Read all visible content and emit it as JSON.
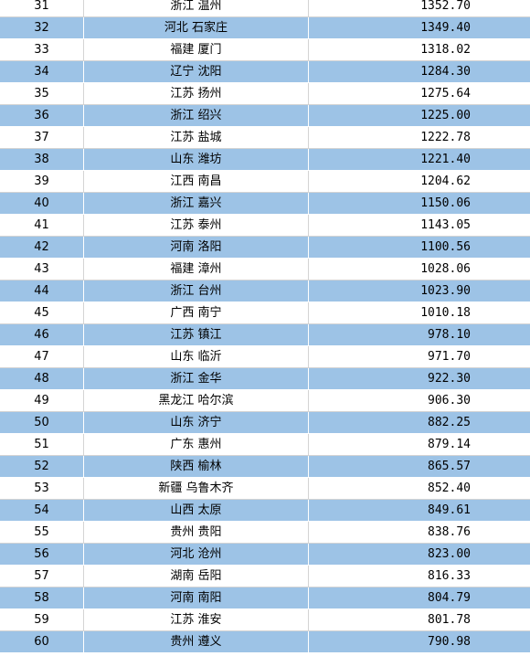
{
  "colors": {
    "stripe": "#9dc3e6",
    "plain": "#ffffff",
    "gridline": "#d4d4d4"
  },
  "rows": [
    {
      "rank": "31",
      "city": "浙江 温州",
      "value": "1352.70"
    },
    {
      "rank": "32",
      "city": "河北 石家庄",
      "value": "1349.40"
    },
    {
      "rank": "33",
      "city": "福建 厦门",
      "value": "1318.02"
    },
    {
      "rank": "34",
      "city": "辽宁 沈阳",
      "value": "1284.30"
    },
    {
      "rank": "35",
      "city": "江苏 扬州",
      "value": "1275.64"
    },
    {
      "rank": "36",
      "city": "浙江 绍兴",
      "value": "1225.00"
    },
    {
      "rank": "37",
      "city": "江苏 盐城",
      "value": "1222.78"
    },
    {
      "rank": "38",
      "city": "山东 潍坊",
      "value": "1221.40"
    },
    {
      "rank": "39",
      "city": "江西 南昌",
      "value": "1204.62"
    },
    {
      "rank": "40",
      "city": "浙江 嘉兴",
      "value": "1150.06"
    },
    {
      "rank": "41",
      "city": "江苏 泰州",
      "value": "1143.05"
    },
    {
      "rank": "42",
      "city": "河南 洛阳",
      "value": "1100.56"
    },
    {
      "rank": "43",
      "city": "福建 漳州",
      "value": "1028.06"
    },
    {
      "rank": "44",
      "city": "浙江 台州",
      "value": "1023.90"
    },
    {
      "rank": "45",
      "city": "广西 南宁",
      "value": "1010.18"
    },
    {
      "rank": "46",
      "city": "江苏 镇江",
      "value": "978.10"
    },
    {
      "rank": "47",
      "city": "山东 临沂",
      "value": "971.70"
    },
    {
      "rank": "48",
      "city": "浙江 金华",
      "value": "922.30"
    },
    {
      "rank": "49",
      "city": "黑龙江 哈尔滨",
      "value": "906.30"
    },
    {
      "rank": "50",
      "city": "山东 济宁",
      "value": "882.25"
    },
    {
      "rank": "51",
      "city": "广东 惠州",
      "value": "879.14"
    },
    {
      "rank": "52",
      "city": "陕西 榆林",
      "value": "865.57"
    },
    {
      "rank": "53",
      "city": "新疆 乌鲁木齐",
      "value": "852.40"
    },
    {
      "rank": "54",
      "city": "山西 太原",
      "value": "849.61"
    },
    {
      "rank": "55",
      "city": "贵州 贵阳",
      "value": "838.76"
    },
    {
      "rank": "56",
      "city": "河北 沧州",
      "value": "823.00"
    },
    {
      "rank": "57",
      "city": "湖南 岳阳",
      "value": "816.33"
    },
    {
      "rank": "58",
      "city": "河南 南阳",
      "value": "804.79"
    },
    {
      "rank": "59",
      "city": "江苏 淮安",
      "value": "801.78"
    },
    {
      "rank": "60",
      "city": "贵州 遵义",
      "value": "790.98"
    }
  ]
}
